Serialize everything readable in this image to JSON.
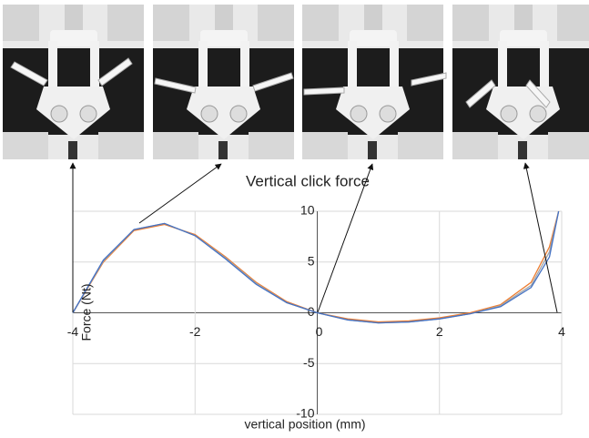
{
  "chart_data": {
    "type": "line",
    "title": "Vertical click force",
    "x_label": "vertical position (mm)",
    "y_label": "Force (Nt)",
    "x": [
      -4,
      -3.5,
      -3,
      -2.5,
      -2,
      -1.5,
      -1,
      -0.5,
      0,
      0.5,
      1,
      1.5,
      2,
      2.5,
      3,
      3.5,
      3.8,
      3.95
    ],
    "series": [
      {
        "color": "#ed7d31",
        "values": [
          0,
          5.0,
          8.1,
          8.7,
          7.7,
          5.5,
          3.0,
          1.1,
          0,
          -0.6,
          -0.9,
          -0.8,
          -0.5,
          0,
          0.8,
          3.0,
          6.5,
          10
        ]
      },
      {
        "color": "#a5a5a5",
        "values": [
          0,
          5.1,
          8.2,
          8.8,
          7.6,
          5.4,
          2.9,
          1.0,
          0,
          -0.7,
          -1.0,
          -0.9,
          -0.6,
          -0.1,
          0.7,
          2.7,
          6.0,
          10
        ]
      },
      {
        "color": "#4472c4",
        "values": [
          0,
          5.2,
          8.2,
          8.8,
          7.6,
          5.3,
          2.8,
          1.0,
          0,
          -0.7,
          -1.0,
          -0.9,
          -0.6,
          -0.1,
          0.6,
          2.5,
          5.5,
          10
        ]
      }
    ],
    "xlim": [
      -4,
      4
    ],
    "xticks": [
      -4,
      -2,
      0,
      2,
      4
    ],
    "ylim": [
      -10,
      10
    ],
    "yticks": [
      -10,
      -5,
      0,
      5,
      10
    ],
    "grid": true
  }
}
